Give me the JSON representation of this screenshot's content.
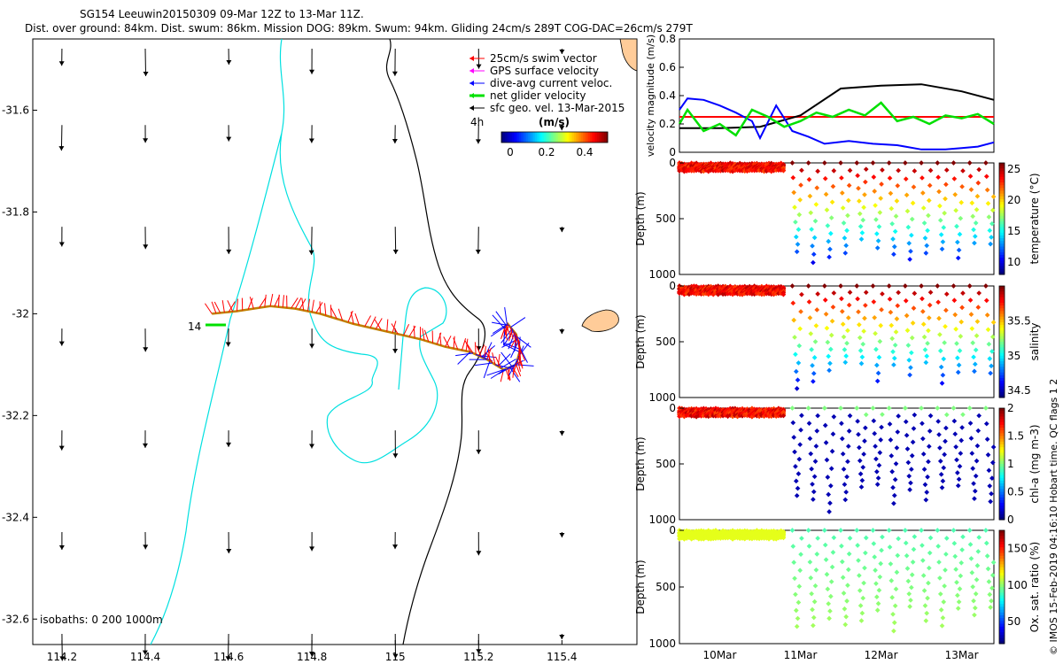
{
  "title": {
    "line1": "SG154 Leeuwin20150309 09-Mar 12Z to 13-Mar 11Z.",
    "line2": "Dist. over ground: 84km. Dist. swum: 86km. Mission DOG: 89km. Swum: 94km. Gliding 24cm/s 289T COG-DAC=26cm/s 279T"
  },
  "credit": "© IMOS 15-Feb-2019 04:16:10 Hobart time. QC flags 1  2",
  "colors": {
    "swim": "#ff0000",
    "gps": "#ff00ff",
    "dac": "#0000ff",
    "net": "#00e000",
    "geo": "#000000",
    "isobath_200": "#00e0e0",
    "isobath_1000": "#000000",
    "land": "#ffcc99"
  },
  "map": {
    "isobaths_label": "isobaths: 0   200  1000m",
    "start_label": "14",
    "time_label": "4h",
    "legend": [
      {
        "label": "25cm/s swim vector",
        "color": "#ff0000"
      },
      {
        "label": "GPS surface velocity",
        "color": "#ff00ff"
      },
      {
        "label": "dive-avg current veloc.",
        "color": "#0000ff"
      },
      {
        "label": "net glider velocity",
        "color": "#00e000"
      },
      {
        "label": "sfc geo. vel. 13-Mar-2015",
        "color": "#000000"
      }
    ],
    "colorbar": {
      "title": "(m/s)",
      "ticks": [
        "0",
        "0.2",
        "0.4"
      ]
    }
  },
  "chart_data": [
    {
      "type": "scatter",
      "name": "glider-track-map",
      "xlim": [
        114.13,
        115.58
      ],
      "ylim": [
        -32.65,
        -31.46
      ],
      "xticks": [
        "114.2",
        "114.4",
        "114.6",
        "114.8",
        "115",
        "115.2",
        "115.4"
      ],
      "xtick_values": [
        114.2,
        114.4,
        114.6,
        114.8,
        115.0,
        115.2,
        115.4
      ],
      "yticks": [
        "-31.6",
        "-31.8",
        "-32",
        "-32.2",
        "-32.4",
        "-32.6"
      ],
      "ytick_values": [
        -31.6,
        -31.8,
        -32.0,
        -32.2,
        -32.4,
        -32.6
      ],
      "track": {
        "lon": [
          114.56,
          114.62,
          114.7,
          114.76,
          114.82,
          114.9,
          114.98,
          115.06,
          115.12,
          115.18,
          115.22,
          115.26,
          115.29,
          115.3,
          115.29,
          115.27,
          115.26
        ],
        "lat": [
          -32.0,
          -31.995,
          -31.985,
          -31.99,
          -32.0,
          -32.02,
          -32.035,
          -32.05,
          -32.065,
          -32.075,
          -32.09,
          -32.11,
          -32.1,
          -32.07,
          -32.04,
          -32.02,
          -32.03
        ]
      }
    },
    {
      "type": "line",
      "name": "velocity-magnitude",
      "xlim": [
        9.5,
        13.4
      ],
      "ylim": [
        0,
        0.8
      ],
      "ylabel": "velocity magnitude (m/s)",
      "yticks": [
        "0",
        "0.2",
        "0.4",
        "0.6",
        "0.8"
      ],
      "ytick_values": [
        0,
        0.2,
        0.4,
        0.6,
        0.8
      ],
      "series": [
        {
          "name": "swim",
          "color": "#ff0000",
          "x": [
            9.5,
            13.4
          ],
          "y": [
            0.25,
            0.25
          ]
        },
        {
          "name": "geo",
          "color": "#000000",
          "x": [
            9.5,
            10.0,
            10.5,
            11.0,
            11.5,
            12.0,
            12.5,
            13.0,
            13.4
          ],
          "y": [
            0.17,
            0.17,
            0.18,
            0.26,
            0.45,
            0.47,
            0.48,
            0.43,
            0.37
          ]
        },
        {
          "name": "dac",
          "color": "#0000ff",
          "x": [
            9.5,
            9.6,
            9.8,
            10.0,
            10.2,
            10.4,
            10.5,
            10.7,
            10.9,
            11.1,
            11.3,
            11.6,
            11.9,
            12.2,
            12.5,
            12.8,
            13.0,
            13.2,
            13.4
          ],
          "y": [
            0.3,
            0.38,
            0.37,
            0.33,
            0.28,
            0.22,
            0.1,
            0.33,
            0.15,
            0.11,
            0.06,
            0.08,
            0.06,
            0.05,
            0.02,
            0.02,
            0.03,
            0.04,
            0.07
          ]
        },
        {
          "name": "net",
          "color": "#00e000",
          "x": [
            9.5,
            9.6,
            9.8,
            10.0,
            10.2,
            10.4,
            10.6,
            10.8,
            11.0,
            11.2,
            11.4,
            11.6,
            11.8,
            12.0,
            12.2,
            12.4,
            12.6,
            12.8,
            13.0,
            13.2,
            13.4
          ],
          "y": [
            0.2,
            0.3,
            0.15,
            0.2,
            0.12,
            0.3,
            0.25,
            0.18,
            0.22,
            0.28,
            0.25,
            0.3,
            0.26,
            0.35,
            0.22,
            0.25,
            0.2,
            0.26,
            0.24,
            0.27,
            0.2
          ]
        }
      ]
    },
    {
      "type": "scatter",
      "name": "temperature-profile",
      "ylabel": "Depth (m)",
      "clabel": "temperature (°C)",
      "ylim": [
        1000,
        0
      ],
      "clim": [
        8,
        26
      ],
      "cticks": [
        "10",
        "15",
        "20",
        "25"
      ],
      "ctick_values": [
        10,
        15,
        20,
        25
      ],
      "yticks": [
        "0",
        "500",
        "1000"
      ],
      "ytick_values": [
        0,
        500,
        1000
      ]
    },
    {
      "type": "scatter",
      "name": "salinity-profile",
      "ylabel": "Depth (m)",
      "clabel": "salinity",
      "ylim": [
        1000,
        0
      ],
      "clim": [
        34.4,
        36.0
      ],
      "cticks": [
        "34.5",
        "35",
        "35.5"
      ],
      "ctick_values": [
        34.5,
        35.0,
        35.5
      ],
      "yticks": [
        "0",
        "500",
        "1000"
      ],
      "ytick_values": [
        0,
        500,
        1000
      ]
    },
    {
      "type": "scatter",
      "name": "chlorophyll-profile",
      "ylabel": "Depth (m)",
      "clabel": "chl-a (mg m-3)",
      "ylim": [
        1000,
        0
      ],
      "clim": [
        0,
        2
      ],
      "cticks": [
        "0",
        "0.5",
        "1",
        "1.5",
        "2"
      ],
      "ctick_values": [
        0,
        0.5,
        1.0,
        1.5,
        2.0
      ],
      "yticks": [
        "0",
        "500",
        "1000"
      ],
      "ytick_values": [
        0,
        500,
        1000
      ]
    },
    {
      "type": "scatter",
      "name": "oxygen-profile",
      "ylabel": "Depth (m)",
      "clabel": "Ox. sat. ratio (%)",
      "ylim": [
        1000,
        0
      ],
      "clim": [
        20,
        175
      ],
      "cticks": [
        "50",
        "100",
        "150"
      ],
      "ctick_values": [
        50,
        100,
        150
      ],
      "yticks": [
        "0",
        "500",
        "1000"
      ],
      "ytick_values": [
        0,
        500,
        1000
      ]
    }
  ],
  "time_axis": {
    "labels": [
      "10Mar",
      "11Mar",
      "12Mar",
      "13Mar"
    ],
    "values": [
      10,
      11,
      12,
      13
    ],
    "xlim": [
      9.5,
      13.4
    ]
  }
}
